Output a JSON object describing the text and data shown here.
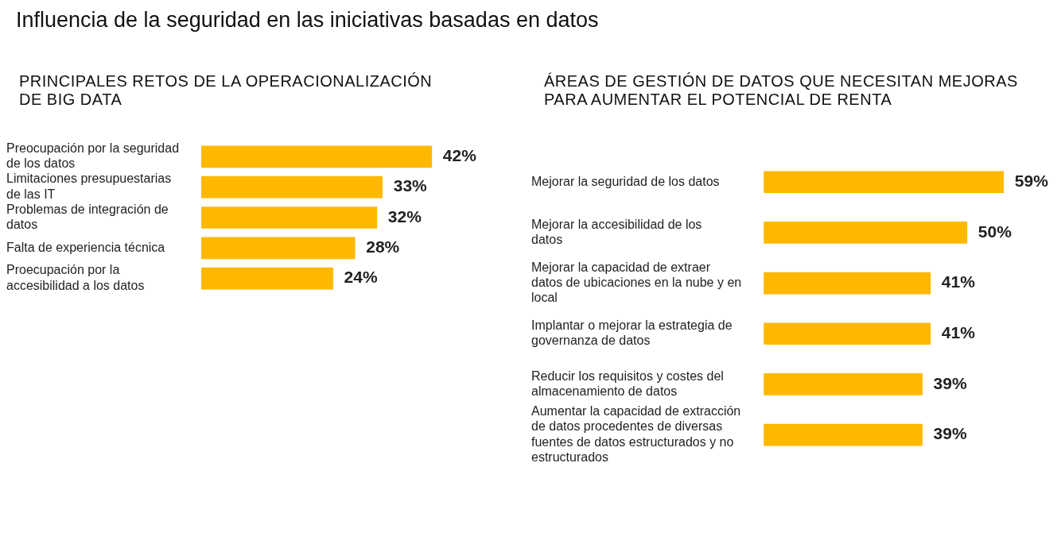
{
  "chart_data": [
    {
      "type": "bar",
      "orientation": "horizontal",
      "title": "Influencia de la seguridad en las iniciativas basadas en datos",
      "subtitle": "PRINCIPALES RETOS DE LA OPERACIONALIZACIÓN DE BIG DATA",
      "color": "#ffb800",
      "categories": [
        "Preocupación por la seguridad de los datos",
        "Limitaciones presupuestarias de las IT",
        "Problemas de integración de datos",
        "Falta de experiencia técnica",
        "Proecupación por la accesibilidad a los datos"
      ],
      "values": [
        42,
        33,
        32,
        28,
        24
      ],
      "value_labels": [
        "42%",
        "33%",
        "32%",
        "28%",
        "24%"
      ]
    },
    {
      "type": "bar",
      "orientation": "horizontal",
      "title": "ÁREAS DE GESTIÓN DE DATOS QUE NECESITAN MEJORAS PARA AUMENTAR  EL POTENCIAL DE RENTA",
      "color": "#ffb800",
      "categories": [
        "Mejorar la seguridad de los datos",
        "Mejorar la accesibilidad de los datos",
        "Mejorar la capacidad de extraer datos de ubicaciones en la nube y en local",
        "Implantar o mejorar la estrategia de governanza de datos",
        "Reducir los requisitos y costes del almacenamiento de datos",
        "Aumentar la capacidad de extracción de datos procedentes de diversas fuentes de datos estructurados y no estructurados"
      ],
      "values": [
        59,
        50,
        41,
        41,
        39,
        39
      ],
      "value_labels": [
        "59%",
        "50%",
        "41%",
        "41%",
        "39%",
        "39%"
      ]
    }
  ]
}
